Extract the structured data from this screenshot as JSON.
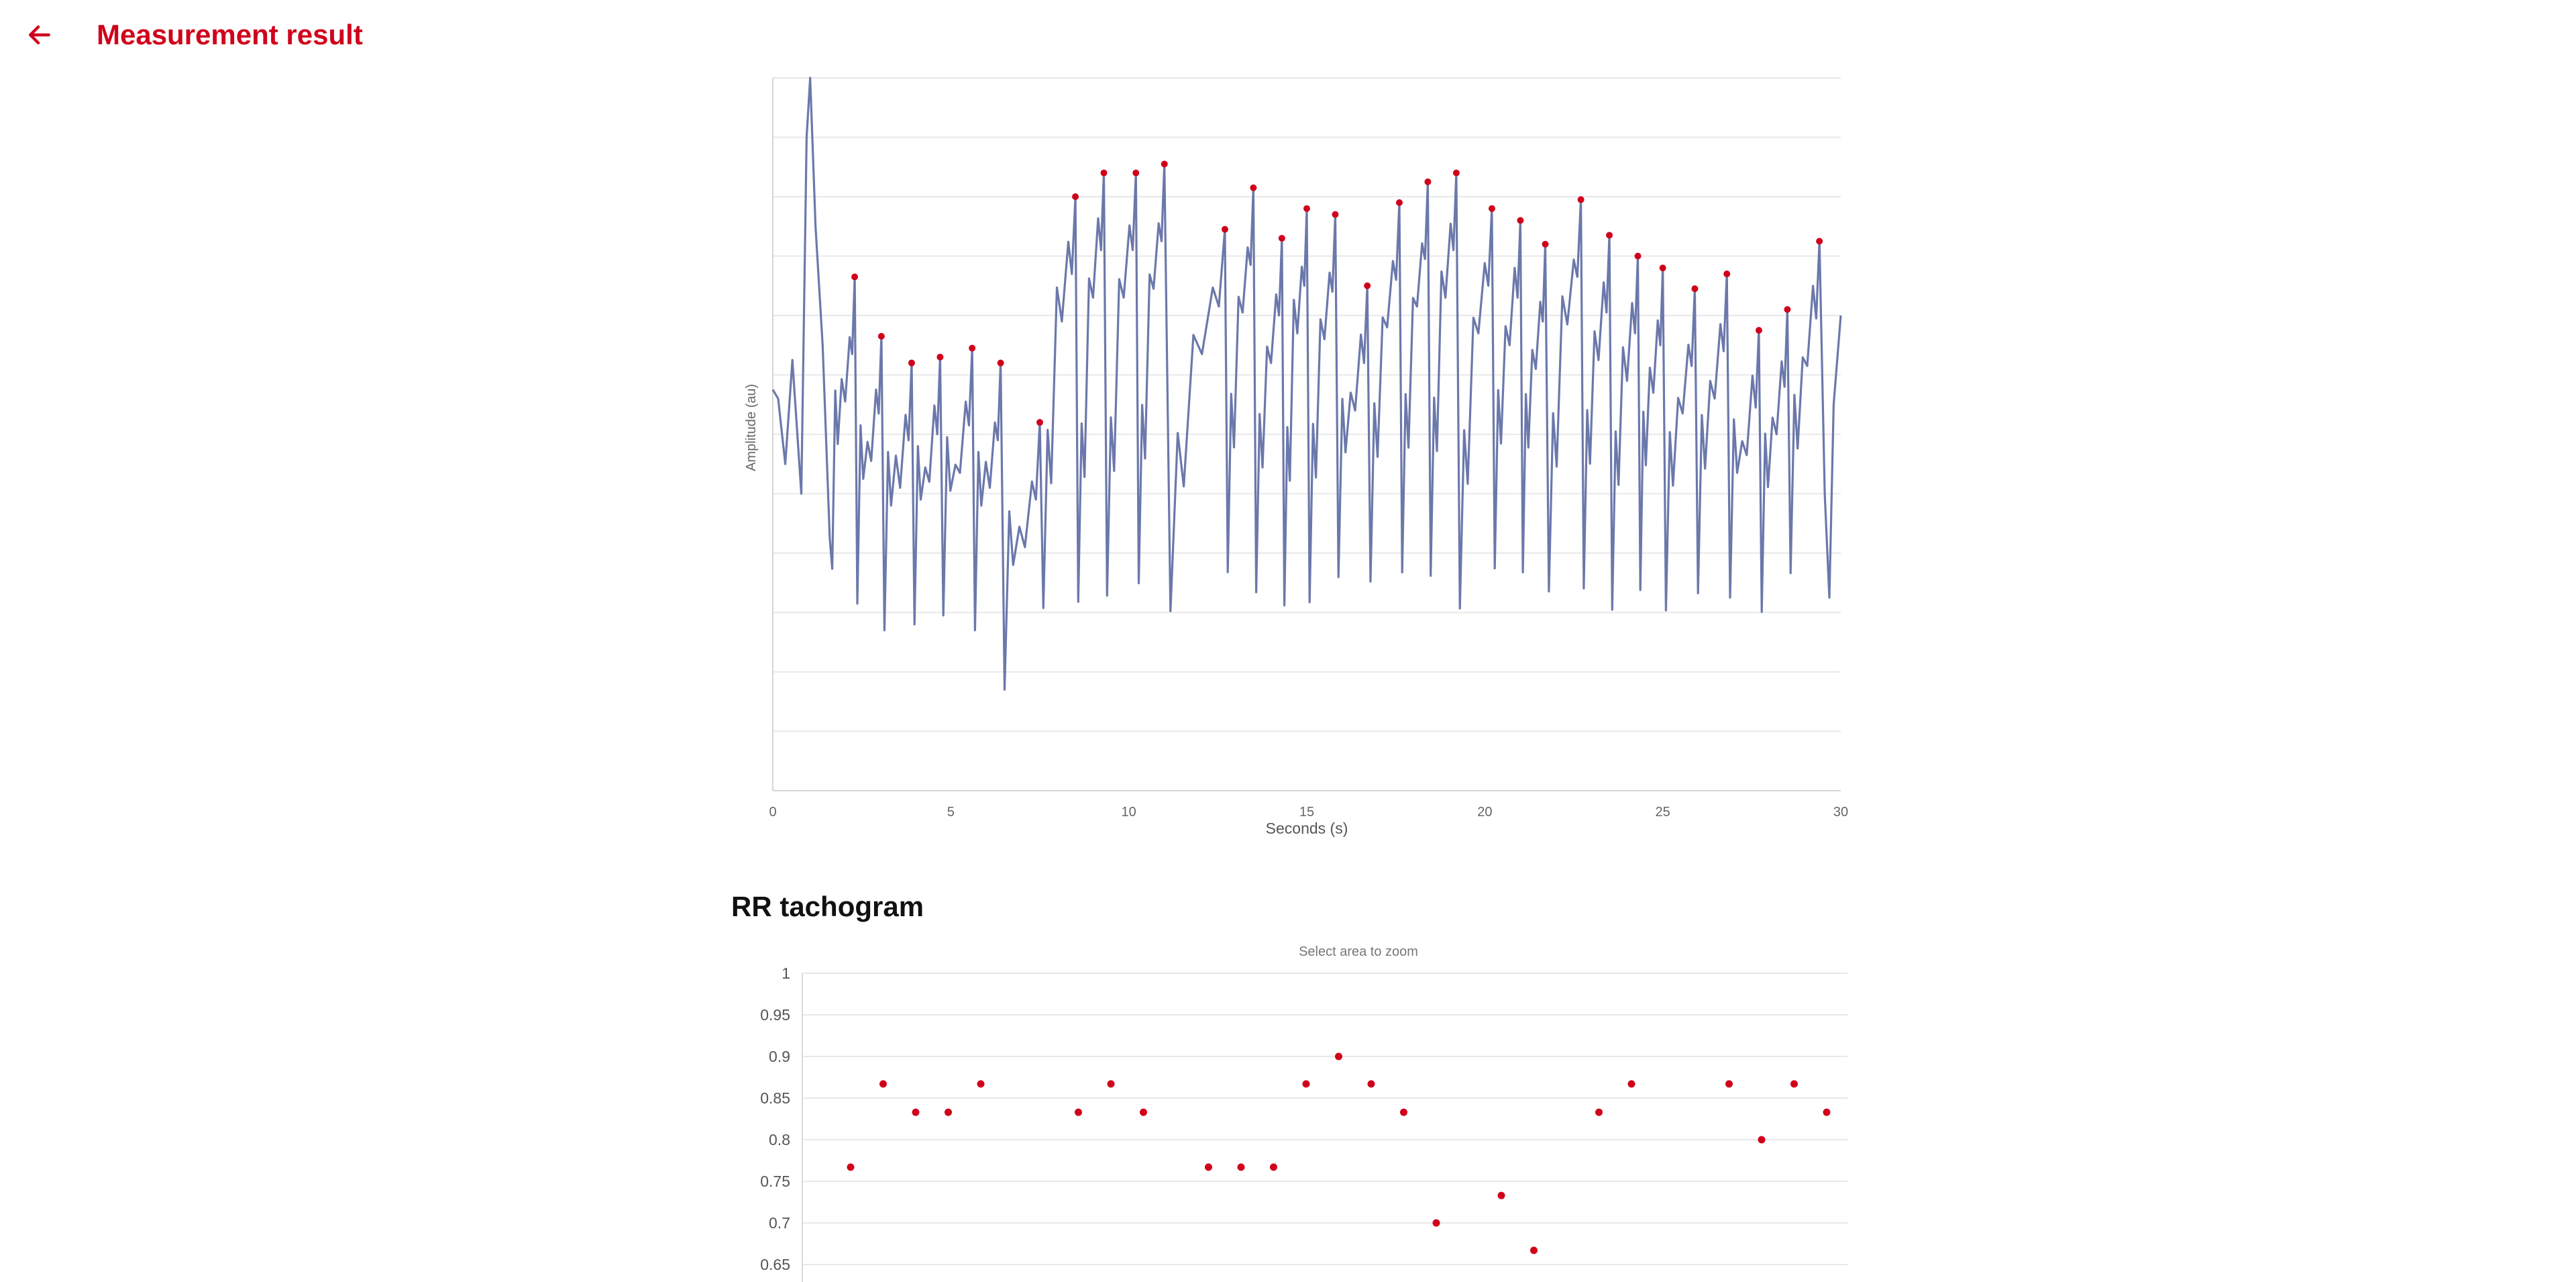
{
  "header": {
    "title": "Measurement result",
    "back_icon": "arrow-left-icon"
  },
  "colors": {
    "accent": "#d0021b",
    "line": "#6b78ab",
    "grid": "#e8e8e8",
    "axis_text": "#666666"
  },
  "rr_section": {
    "title": "RR tachogram"
  },
  "chart_data": [
    {
      "type": "line",
      "xlabel": "Seconds (s)",
      "ylabel": "Amplitude (au)",
      "xlim": [
        0,
        30
      ],
      "ylim": [
        -12,
        12
      ],
      "xticks": [
        0,
        5,
        10,
        15,
        20,
        25,
        30
      ],
      "grid": true,
      "peak_times": [
        2.3,
        3.05,
        3.9,
        4.7,
        5.6,
        6.4,
        7.5,
        8.5,
        9.3,
        10.2,
        11.0,
        12.7,
        13.5,
        14.3,
        15.0,
        15.8,
        16.7,
        17.6,
        18.4,
        19.2,
        20.2,
        21.0,
        21.7,
        22.7,
        23.5,
        24.3,
        25.0,
        25.9,
        26.8,
        27.7,
        28.5,
        29.4
      ],
      "peak_values": [
        5.3,
        3.3,
        2.4,
        2.6,
        2.9,
        2.4,
        0.4,
        8.0,
        8.8,
        8.8,
        9.1,
        6.9,
        8.3,
        6.6,
        7.6,
        7.4,
        5.0,
        7.8,
        8.5,
        8.8,
        7.6,
        7.2,
        6.4,
        7.9,
        6.7,
        6.0,
        5.6,
        4.9,
        5.4,
        3.5,
        4.2,
        6.5
      ]
    },
    {
      "type": "scatter",
      "subtitle": "Select area to zoom",
      "ylim": [
        0.6,
        1.0
      ],
      "yticks": [
        1,
        0.95,
        0.9,
        0.85,
        0.8,
        0.75,
        0.7,
        0.65
      ],
      "yticklabels": [
        "1",
        "0.95",
        "0.9",
        "0.85",
        "0.8",
        "0.75",
        "0.7",
        "0.65"
      ],
      "grid": true,
      "series": [
        {
          "values": [
            0.767,
            0.867,
            0.833,
            0.833,
            0.867,
            null,
            null,
            0.833,
            0.867,
            0.833,
            null,
            0.767,
            0.767,
            0.767,
            0.867,
            0.9,
            0.867,
            0.833,
            0.7,
            null,
            0.733,
            0.667,
            null,
            0.833,
            0.867,
            null,
            null,
            0.867,
            0.8,
            0.867,
            0.833
          ]
        }
      ]
    }
  ]
}
